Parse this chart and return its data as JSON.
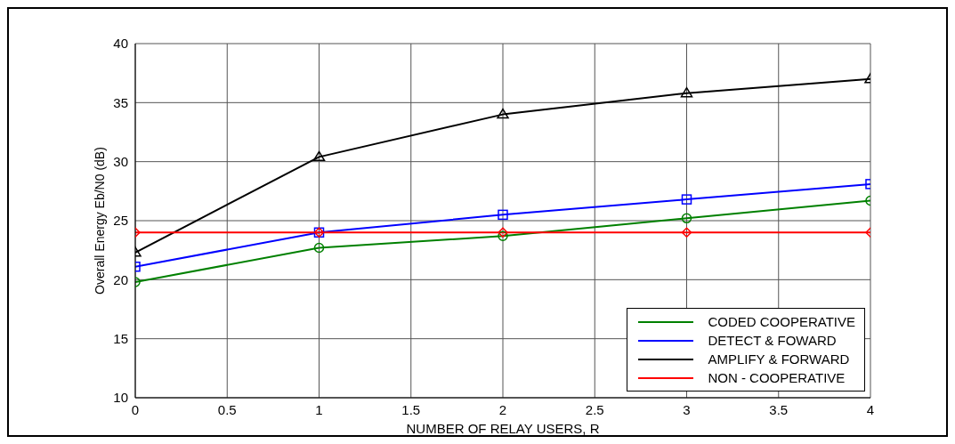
{
  "chart_data": {
    "type": "line",
    "xlabel": "NUMBER OF RELAY USERS,  R",
    "ylabel": "Overall Energy Eb/N0 (dB)",
    "x": [
      0,
      1,
      2,
      3,
      4
    ],
    "xlim": [
      0,
      4
    ],
    "xticks": [
      0,
      0.5,
      1,
      1.5,
      2,
      2.5,
      3,
      3.5,
      4
    ],
    "ylim": [
      10,
      40
    ],
    "yticks": [
      10,
      15,
      20,
      25,
      30,
      35,
      40
    ],
    "grid": true,
    "legend": "bottom right",
    "series": [
      {
        "name": "CODED COOPERATIVE",
        "color": "#008000",
        "marker": "circle",
        "values": [
          19.8,
          22.7,
          23.7,
          25.2,
          26.7
        ]
      },
      {
        "name": "DETECT & FOWARD",
        "color": "#0000ff",
        "marker": "square",
        "values": [
          21.1,
          24.0,
          25.5,
          26.8,
          28.1
        ]
      },
      {
        "name": "AMPLIFY & FORWARD",
        "color": "#000000",
        "marker": "triangle",
        "values": [
          22.3,
          30.4,
          34.0,
          35.8,
          37.0
        ]
      },
      {
        "name": "NON - COOPERATIVE",
        "color": "#ff0000",
        "marker": "diamond",
        "values": [
          24,
          24,
          24,
          24,
          24
        ]
      }
    ]
  }
}
